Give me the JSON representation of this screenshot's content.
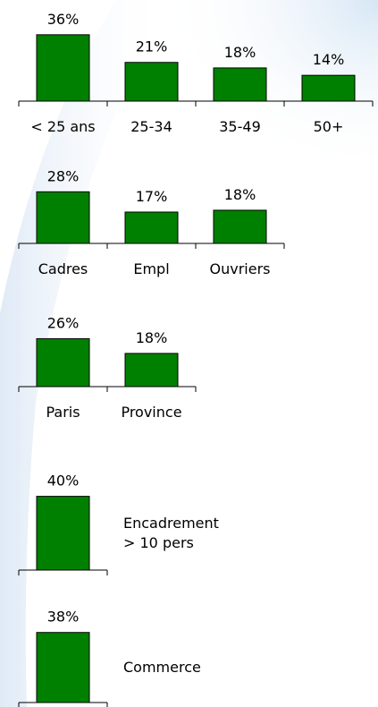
{
  "chart_data": [
    {
      "type": "bar",
      "categories": [
        "< 25 ans",
        "25-34",
        "35-49",
        "50+"
      ],
      "values": [
        36,
        21,
        18,
        14
      ],
      "value_labels": [
        "36%",
        "21%",
        "18%",
        "14%"
      ],
      "color": "#008000"
    },
    {
      "type": "bar",
      "categories": [
        "Cadres",
        "Empl",
        "Ouvriers"
      ],
      "values": [
        28,
        17,
        18
      ],
      "value_labels": [
        "28%",
        "17%",
        "18%"
      ],
      "color": "#008000"
    },
    {
      "type": "bar",
      "categories": [
        "Paris",
        "Province"
      ],
      "values": [
        26,
        18
      ],
      "value_labels": [
        "26%",
        "18%"
      ],
      "color": "#008000"
    },
    {
      "type": "bar",
      "categories": [
        "Encadrement\n> 10 pers"
      ],
      "values": [
        40
      ],
      "value_labels": [
        "40%"
      ],
      "color": "#008000"
    },
    {
      "type": "bar",
      "categories": [
        "Commerce"
      ],
      "values": [
        38
      ],
      "value_labels": [
        "38%"
      ],
      "color": "#008000"
    }
  ]
}
